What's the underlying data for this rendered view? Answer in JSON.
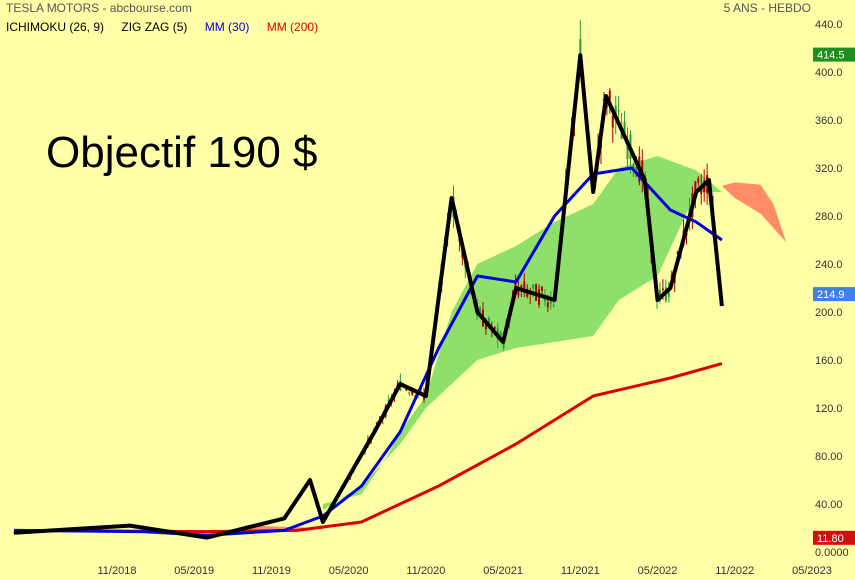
{
  "chart_data": {
    "type": "line",
    "title": "TESLA MOTORS - abcbourse.com",
    "period": "5 ANS - HEBDO",
    "legend": [
      "ICHIMOKU (26, 9)",
      "ZIG ZAG (5)",
      "MM (30)",
      "MM (200)"
    ],
    "annotation": "Objectif 190 $",
    "colors": {
      "background": "#FFFFA8",
      "zigzag": "#000000",
      "mm30": "#0000DD",
      "mm200": "#DD0000",
      "cloud_bull": "#8FE06A",
      "cloud_bear": "#FF8C66",
      "candle_up": "#2E9B2E",
      "candle_down": "#B00000",
      "badge_high": "#1F8F1F",
      "badge_last": "#3E7FE8",
      "badge_low": "#D01010"
    },
    "yticks": [
      "440.0",
      "400.0",
      "360.0",
      "320.0",
      "280.0",
      "240.0",
      "200.0",
      "160.0",
      "120.0",
      "80.00",
      "40.00",
      "0.0000"
    ],
    "ylim": [
      0,
      440
    ],
    "xticks": [
      "11/2018",
      "05/2019",
      "11/2019",
      "05/2020",
      "11/2020",
      "05/2021",
      "11/2021",
      "05/2022",
      "11/2022",
      "05/2023"
    ],
    "x_range": [
      "2018-03",
      "2023-05"
    ],
    "badges": {
      "high": "414.5",
      "last": "214.9",
      "low": "11.80"
    },
    "zigzag": {
      "x": [
        "2018-03",
        "2018-12",
        "2019-06",
        "2019-09",
        "2019-12",
        "2020-02",
        "2020-03",
        "2020-07",
        "2020-09",
        "2020-11",
        "2021-01",
        "2021-03",
        "2021-05",
        "2021-06",
        "2021-09",
        "2021-11",
        "2021-12",
        "2022-01",
        "2022-04",
        "2022-05",
        "2022-06",
        "2022-08",
        "2022-09",
        "2022-10"
      ],
      "y": [
        16,
        22,
        12,
        20,
        28,
        60,
        25,
        100,
        140,
        130,
        295,
        200,
        175,
        220,
        210,
        414,
        300,
        380,
        310,
        210,
        220,
        300,
        310,
        205
      ]
    },
    "mm30": {
      "x": [
        "2018-03",
        "2019-01",
        "2019-06",
        "2019-12",
        "2020-03",
        "2020-06",
        "2020-09",
        "2020-12",
        "2021-03",
        "2021-06",
        "2021-09",
        "2021-12",
        "2022-03",
        "2022-06",
        "2022-08",
        "2022-10"
      ],
      "y": [
        18,
        17,
        14,
        18,
        30,
        55,
        100,
        170,
        230,
        225,
        280,
        315,
        320,
        285,
        275,
        260
      ]
    },
    "mm200": {
      "x": [
        "2018-03",
        "2019-06",
        "2020-01",
        "2020-06",
        "2020-12",
        "2021-06",
        "2021-12",
        "2022-06",
        "2022-10"
      ],
      "y": [
        18,
        17,
        18,
        25,
        55,
        90,
        130,
        145,
        157
      ]
    }
  }
}
